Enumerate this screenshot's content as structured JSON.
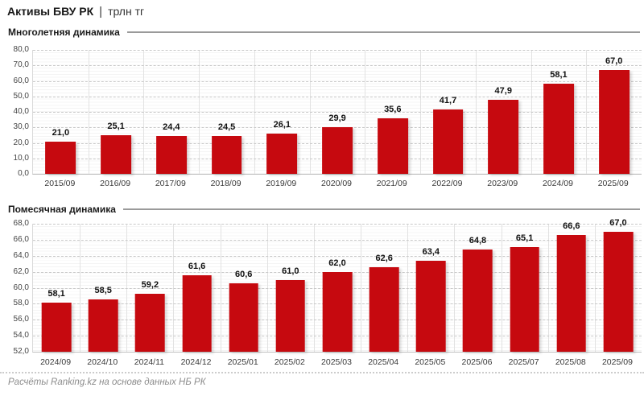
{
  "header": {
    "title": "Активы БВУ РК",
    "separator": "|",
    "unit": "трлн тг"
  },
  "footer": {
    "source": "Расчёты Ranking.kz на основе данных НБ РК"
  },
  "colors": {
    "bar": "#c6090f",
    "grid_major": "#c9c9c9",
    "section_line": "#9a9a9a",
    "axis_text": "#444444",
    "value_label": "#111111",
    "footer_text": "#8c8c8c"
  },
  "chart_data": [
    {
      "type": "bar",
      "title": "Многолетняя динамика",
      "categories": [
        "2015/09",
        "2016/09",
        "2017/09",
        "2018/09",
        "2019/09",
        "2020/09",
        "2021/09",
        "2022/09",
        "2023/09",
        "2024/09",
        "2025/09"
      ],
      "values": [
        21.0,
        25.1,
        24.4,
        24.5,
        26.1,
        29.9,
        35.6,
        41.7,
        47.9,
        58.1,
        67.0
      ],
      "value_labels": [
        "21,0",
        "25,1",
        "24,4",
        "24,5",
        "26,1",
        "29,9",
        "35,6",
        "41,7",
        "47,9",
        "58,1",
        "67,0"
      ],
      "ylim": [
        0,
        80
      ],
      "ytick_step": 10,
      "yticks": [
        "80,0",
        "70,0",
        "60,0",
        "50,0",
        "40,0",
        "30,0",
        "20,0",
        "10,0",
        "0,0"
      ],
      "grid": true,
      "legend": false,
      "xlabel": "",
      "ylabel": ""
    },
    {
      "type": "bar",
      "title": "Помесячная динамика",
      "categories": [
        "2024/09",
        "2024/10",
        "2024/11",
        "2024/12",
        "2025/01",
        "2025/02",
        "2025/03",
        "2025/04",
        "2025/05",
        "2025/06",
        "2025/07",
        "2025/08",
        "2025/09"
      ],
      "values": [
        58.1,
        58.5,
        59.2,
        61.6,
        60.6,
        61.0,
        62.0,
        62.6,
        63.4,
        64.8,
        65.1,
        66.6,
        67.0
      ],
      "value_labels": [
        "58,1",
        "58,5",
        "59,2",
        "61,6",
        "60,6",
        "61,0",
        "62,0",
        "62,6",
        "63,4",
        "64,8",
        "65,1",
        "66,6",
        "67,0"
      ],
      "ylim": [
        52,
        68
      ],
      "ytick_step": 2,
      "yticks": [
        "68,0",
        "66,0",
        "64,0",
        "62,0",
        "60,0",
        "58,0",
        "56,0",
        "54,0",
        "52,0"
      ],
      "grid": true,
      "legend": false,
      "xlabel": "",
      "ylabel": ""
    }
  ]
}
